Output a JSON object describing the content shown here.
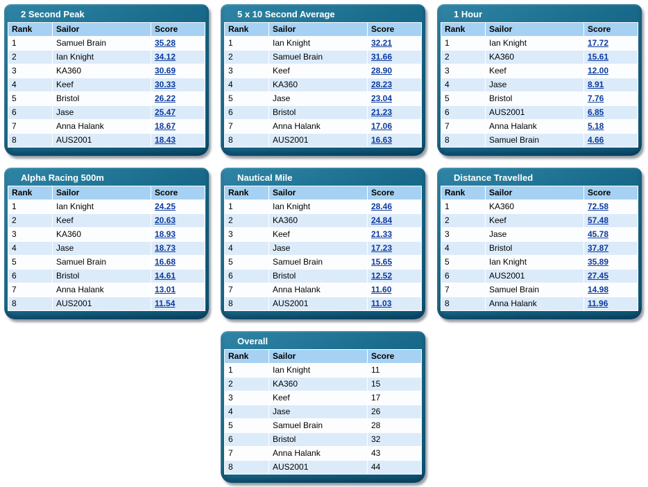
{
  "columns": {
    "rank": "Rank",
    "sailor": "Sailor",
    "score": "Score"
  },
  "boards": [
    {
      "title": "2 Second Peak",
      "scores_are_links": true,
      "rows": [
        [
          "1",
          "Samuel Brain",
          "35.28"
        ],
        [
          "2",
          "Ian Knight",
          "34.12"
        ],
        [
          "3",
          "KA360",
          "30.69"
        ],
        [
          "4",
          "Keef",
          "30.33"
        ],
        [
          "5",
          "Bristol",
          "26.22"
        ],
        [
          "6",
          "Jase",
          "25.47"
        ],
        [
          "7",
          "Anna Halank",
          "18.67"
        ],
        [
          "8",
          "AUS2001",
          "18.43"
        ]
      ]
    },
    {
      "title": "5 x 10 Second Average",
      "scores_are_links": true,
      "rows": [
        [
          "1",
          "Ian Knight",
          "32.21"
        ],
        [
          "2",
          "Samuel Brain",
          "31.66"
        ],
        [
          "3",
          "Keef",
          "28.90"
        ],
        [
          "4",
          "KA360",
          "28.23"
        ],
        [
          "5",
          "Jase",
          "23.04"
        ],
        [
          "6",
          "Bristol",
          "21.23"
        ],
        [
          "7",
          "Anna Halank",
          "17.06"
        ],
        [
          "8",
          "AUS2001",
          "16.63"
        ]
      ]
    },
    {
      "title": "1 Hour",
      "scores_are_links": true,
      "rows": [
        [
          "1",
          "Ian Knight",
          "17.72"
        ],
        [
          "2",
          "KA360",
          "15.61"
        ],
        [
          "3",
          "Keef",
          "12.00"
        ],
        [
          "4",
          "Jase",
          "8.91"
        ],
        [
          "5",
          "Bristol",
          "7.76"
        ],
        [
          "6",
          "AUS2001",
          "6.85"
        ],
        [
          "7",
          "Anna Halank",
          "5.18"
        ],
        [
          "8",
          "Samuel Brain",
          "4.66"
        ]
      ]
    },
    {
      "title": "Alpha Racing 500m",
      "scores_are_links": true,
      "rows": [
        [
          "1",
          "Ian Knight",
          "24.25"
        ],
        [
          "2",
          "Keef",
          "20.63"
        ],
        [
          "3",
          "KA360",
          "18.93"
        ],
        [
          "4",
          "Jase",
          "18.73"
        ],
        [
          "5",
          "Samuel Brain",
          "16.68"
        ],
        [
          "6",
          "Bristol",
          "14.61"
        ],
        [
          "7",
          "Anna Halank",
          "13.01"
        ],
        [
          "8",
          "AUS2001",
          "11.54"
        ]
      ]
    },
    {
      "title": "Nautical Mile",
      "scores_are_links": true,
      "rows": [
        [
          "1",
          "Ian Knight",
          "28.46"
        ],
        [
          "2",
          "KA360",
          "24.84"
        ],
        [
          "3",
          "Keef",
          "21.33"
        ],
        [
          "4",
          "Jase",
          "17.23"
        ],
        [
          "5",
          "Samuel Brain",
          "15.65"
        ],
        [
          "6",
          "Bristol",
          "12.52"
        ],
        [
          "7",
          "Anna Halank",
          "11.60"
        ],
        [
          "8",
          "AUS2001",
          "11.03"
        ]
      ]
    },
    {
      "title": "Distance Travelled",
      "scores_are_links": true,
      "rows": [
        [
          "1",
          "KA360",
          "72.58"
        ],
        [
          "2",
          "Keef",
          "57.48"
        ],
        [
          "3",
          "Jase",
          "45.78"
        ],
        [
          "4",
          "Bristol",
          "37.87"
        ],
        [
          "5",
          "Ian Knight",
          "35.89"
        ],
        [
          "6",
          "AUS2001",
          "27.45"
        ],
        [
          "7",
          "Samuel Brain",
          "14.98"
        ],
        [
          "8",
          "Anna Halank",
          "11.96"
        ]
      ]
    },
    {
      "title": "Overall",
      "scores_are_links": false,
      "rows": [
        [
          "1",
          "Ian Knight",
          "11"
        ],
        [
          "2",
          "KA360",
          "15"
        ],
        [
          "3",
          "Keef",
          "17"
        ],
        [
          "4",
          "Jase",
          "26"
        ],
        [
          "5",
          "Samuel Brain",
          "28"
        ],
        [
          "6",
          "Bristol",
          "32"
        ],
        [
          "7",
          "Anna Halank",
          "43"
        ],
        [
          "8",
          "AUS2001",
          "44"
        ]
      ]
    }
  ],
  "colors": {
    "panel_teal": "#1a6c8c",
    "header_blue": "#a6d1f2",
    "alt_row_blue": "#dcebfa",
    "score_link": "#0b3a9e"
  }
}
